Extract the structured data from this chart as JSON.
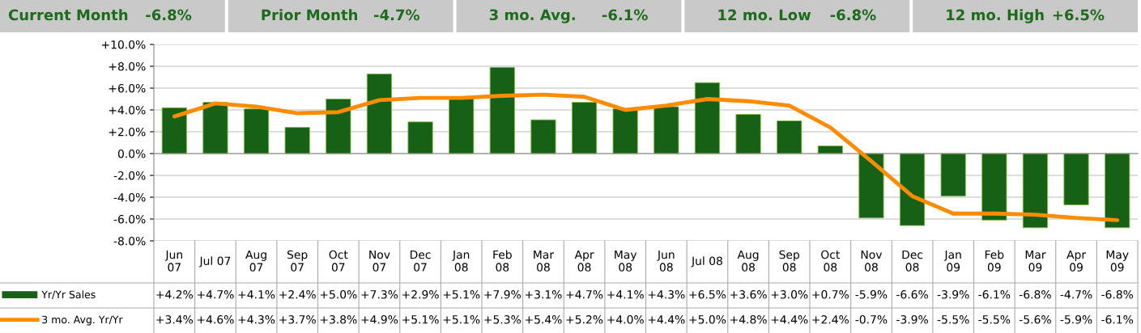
{
  "chart_data": {
    "type": "bar",
    "annotations": [
      "Current Month",
      "-6.8%",
      "Prior Month",
      "-4.7%",
      "3 mo. Avg.",
      "-6.1%",
      "12 mo. Low",
      "-6.8%",
      "12 mo. High",
      "+6.5%"
    ],
    "categories": [
      "Jun\n07",
      "Jul 07",
      "Aug\n07",
      "Sep\n07",
      "Oct\n07",
      "Nov\n07",
      "Dec\n07",
      "Jan\n08",
      "Feb\n08",
      "Mar\n08",
      "Apr\n08",
      "May\n08",
      "Jun\n08",
      "Jul 08",
      "Aug\n08",
      "Sep\n08",
      "Oct\n08",
      "Nov\n08",
      "Dec\n08",
      "Jan\n09",
      "Feb\n09",
      "Mar\n09",
      "Apr\n09",
      "May\n09"
    ],
    "series": [
      {
        "name": "Yr/Yr Sales",
        "color": "#166116",
        "values": [
          4.2,
          4.7,
          4.1,
          2.4,
          5.0,
          7.3,
          2.9,
          5.1,
          7.9,
          3.1,
          4.7,
          4.1,
          4.3,
          6.5,
          3.6,
          3.0,
          0.7,
          -5.9,
          -6.6,
          -3.9,
          -6.1,
          -6.8,
          -4.7,
          -6.8
        ],
        "value_labels": [
          "+4.2%",
          "+4.7%",
          "+4.1%",
          "+2.4%",
          "+5.0%",
          "+7.3%",
          "+2.9%",
          "+5.1%",
          "+7.9%",
          "+3.1%",
          "+4.7%",
          "+4.1%",
          "+4.3%",
          "+6.5%",
          "+3.6%",
          "+3.0%",
          "+0.7%",
          "-5.9%",
          "-6.6%",
          "-3.9%",
          "-6.1%",
          "-6.8%",
          "-4.7%",
          "-6.8%"
        ]
      },
      {
        "name": "3 mo. Avg. Yr/Yr",
        "type": "line",
        "color": "#ff8c00",
        "values": [
          3.4,
          4.6,
          4.3,
          3.7,
          3.8,
          4.9,
          5.1,
          5.1,
          5.3,
          5.4,
          5.2,
          4.0,
          4.4,
          5.0,
          4.8,
          4.4,
          2.4,
          -0.7,
          -3.9,
          -5.5,
          -5.5,
          -5.6,
          -5.9,
          -6.1
        ],
        "value_labels": [
          "+3.4%",
          "+4.6%",
          "+4.3%",
          "+3.7%",
          "+3.8%",
          "+4.9%",
          "+5.1%",
          "+5.1%",
          "+5.3%",
          "+5.4%",
          "+5.2%",
          "+4.0%",
          "+4.4%",
          "+5.0%",
          "+4.8%",
          "+4.4%",
          "+2.4%",
          "-0.7%",
          "-3.9%",
          "-5.5%",
          "-5.5%",
          "-5.6%",
          "-5.9%",
          "-6.1%"
        ]
      }
    ],
    "ylim": [
      -8,
      10
    ],
    "yticks": [
      {
        "value": -8,
        "label": "-8.0%"
      },
      {
        "value": -6,
        "label": "-6.0%"
      },
      {
        "value": -4,
        "label": "-4.0%"
      },
      {
        "value": -2,
        "label": "-2.0%"
      },
      {
        "value": 0,
        "label": "0.0%"
      },
      {
        "value": 2,
        "label": "+2.0%"
      },
      {
        "value": 4,
        "label": "+4.0%"
      },
      {
        "value": 6,
        "label": "+6.0%"
      },
      {
        "value": 8,
        "label": "+8.0%"
      },
      {
        "value": 10,
        "label": "+10.0%"
      }
    ],
    "grid": "y",
    "legend": "bottom",
    "marker": "none",
    "line_style": "solid"
  }
}
